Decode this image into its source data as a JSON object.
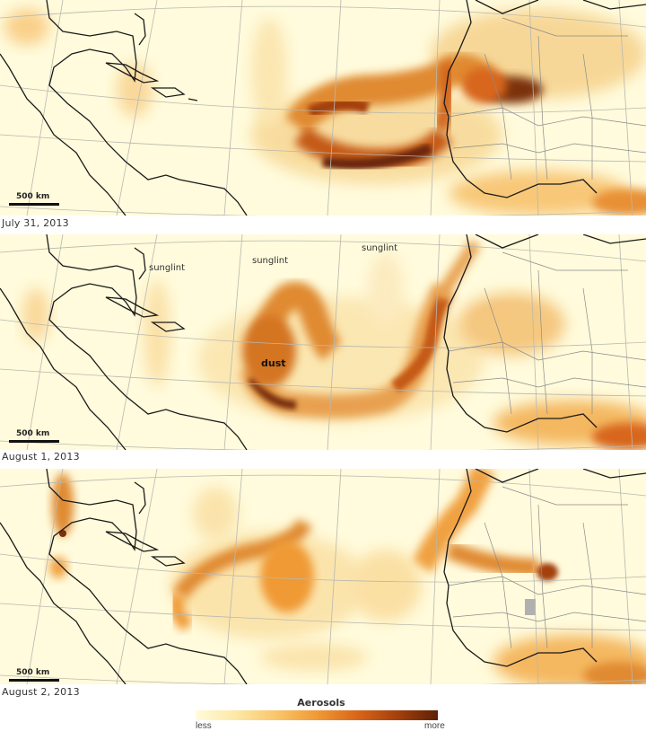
{
  "panels": [
    {
      "date": "July 31, 2013",
      "scale_label": "500 km",
      "labels": []
    },
    {
      "date": "August 1, 2013",
      "scale_label": "500 km",
      "labels": [
        {
          "id": "sunglint-1",
          "text": "sunglint"
        },
        {
          "id": "sunglint-2",
          "text": "sunglint"
        },
        {
          "id": "sunglint-3",
          "text": "sunglint"
        },
        {
          "id": "dust",
          "text": "dust"
        }
      ]
    },
    {
      "date": "August 2, 2013",
      "scale_label": "500 km",
      "labels": []
    }
  ],
  "legend": {
    "title": "Aerosols",
    "less_label": "less",
    "more_label": "more",
    "colors": [
      "#fffbdc",
      "#fde8a6",
      "#f9c66a",
      "#f09a36",
      "#d8661a",
      "#a4400c",
      "#5e2106"
    ]
  },
  "colors": {
    "ocean_background": "#fffbdc",
    "coastline": "#1a1a1a",
    "borders": "#8a8a8a",
    "graticule": "#b8b8b0",
    "no_data": "#b0b0b0"
  }
}
